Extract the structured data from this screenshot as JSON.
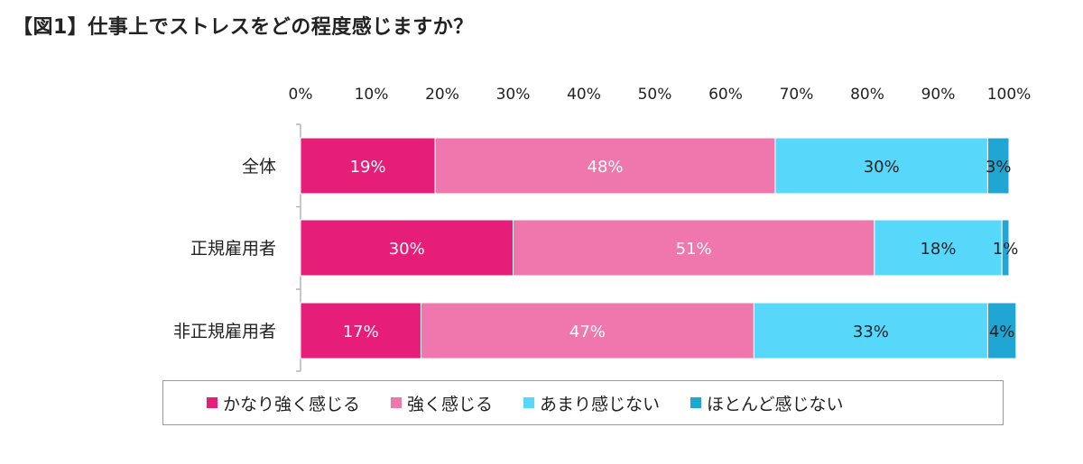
{
  "title": "【図1】仕事上でストレスをどの程度感じますか？",
  "colors": {
    "strong": "#e61e79",
    "somewhat": "#ef77ad",
    "not_much": "#57d8fb",
    "hardly": "#1fa6d3"
  },
  "legend": [
    {
      "name": "かなり強く感じる",
      "color_key": "strong"
    },
    {
      "name": "強く感じる",
      "color_key": "somewhat"
    },
    {
      "name": "あまり感じない",
      "color_key": "not_much"
    },
    {
      "name": "ほとんど感じない",
      "color_key": "hardly"
    }
  ],
  "chart_data": {
    "type": "bar",
    "orientation": "horizontal",
    "stacked": true,
    "xlim": [
      0,
      100
    ],
    "x_ticks": [
      "0%",
      "10%",
      "20%",
      "30%",
      "40%",
      "50%",
      "60%",
      "70%",
      "80%",
      "90%",
      "100%"
    ],
    "x_axis_position": "top",
    "grid": false,
    "legend_position": "bottom",
    "categories": [
      "全体",
      "正規雇用者",
      "非正規雇用者"
    ],
    "series": [
      {
        "name": "かなり強く感じる",
        "color_key": "strong",
        "values": [
          19,
          30,
          17
        ],
        "labels": [
          "19%",
          "30%",
          "17%"
        ]
      },
      {
        "name": "強く感じる",
        "color_key": "somewhat",
        "values": [
          48,
          51,
          47
        ],
        "labels": [
          "48%",
          "51%",
          "47%"
        ]
      },
      {
        "name": "あまり感じない",
        "color_key": "not_much",
        "values": [
          30,
          18,
          33
        ],
        "labels": [
          "30%",
          "18%",
          "33%"
        ]
      },
      {
        "name": "ほとんど感じない",
        "color_key": "hardly",
        "values": [
          3,
          1,
          4
        ],
        "labels": [
          "3%",
          "1%",
          "4%"
        ]
      }
    ]
  }
}
